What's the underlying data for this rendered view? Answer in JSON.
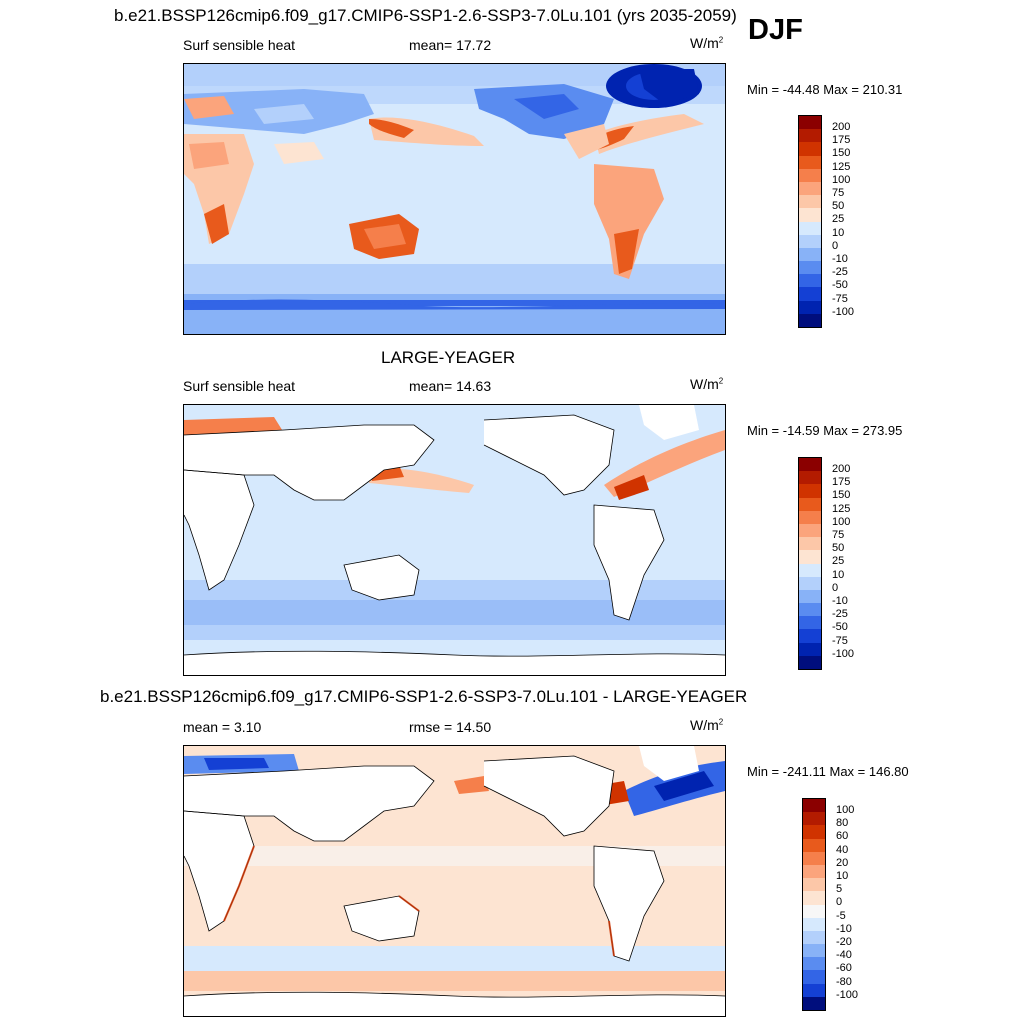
{
  "header": {
    "title": "b.e21.BSSP126cmip6.f09_g17.CMIP6-SSP1-2.6-SSP3-7.0Lu.101 (yrs 2035-2059)",
    "season": "DJF"
  },
  "panels": [
    {
      "name": "model",
      "section_title": "",
      "left": "Surf sensible heat",
      "middle": "mean=  17.72",
      "units": "W/m",
      "units_exp": "2",
      "minmax": "Min = -44.48 Max = 210.31",
      "levels": [
        "200",
        "175",
        "150",
        "125",
        "100",
        "75",
        "50",
        "25",
        "10",
        "0",
        "-10",
        "-25",
        "-50",
        "-75",
        "-100"
      ],
      "colors": [
        "#8b0000",
        "#b31b00",
        "#d03300",
        "#e85a1c",
        "#f57f4b",
        "#fba47c",
        "#fcc7a8",
        "#fde4d2",
        "#d6e9fd",
        "#b3d0fb",
        "#88b2f7",
        "#5a8cf0",
        "#3365e6",
        "#1440d4",
        "#0023b0",
        "#000e7d"
      ]
    },
    {
      "name": "obs",
      "section_title": "LARGE-YEAGER",
      "left": "Surf sensible heat",
      "middle": "mean=  14.63",
      "units": "W/m",
      "units_exp": "2",
      "minmax": "Min = -14.59 Max = 273.95",
      "levels": [
        "200",
        "175",
        "150",
        "125",
        "100",
        "75",
        "50",
        "25",
        "10",
        "0",
        "-10",
        "-25",
        "-50",
        "-75",
        "-100"
      ],
      "colors": [
        "#8b0000",
        "#b31b00",
        "#d03300",
        "#e85a1c",
        "#f57f4b",
        "#fba47c",
        "#fcc7a8",
        "#fde4d2",
        "#d6e9fd",
        "#b3d0fb",
        "#88b2f7",
        "#5a8cf0",
        "#3365e6",
        "#1440d4",
        "#0023b0",
        "#000e7d"
      ]
    },
    {
      "name": "diff",
      "section_title": "b.e21.BSSP126cmip6.f09_g17.CMIP6-SSP1-2.6-SSP3-7.0Lu.101 - LARGE-YEAGER",
      "left": "mean =   3.10",
      "middle": "rmse =  14.50",
      "units": "W/m",
      "units_exp": "2",
      "minmax": "Min = -241.11 Max = 146.80",
      "levels": [
        "100",
        "80",
        "60",
        "40",
        "20",
        "10",
        "5",
        "0",
        "-5",
        "-10",
        "-20",
        "-40",
        "-60",
        "-80",
        "-100"
      ],
      "colors": [
        "#8b0000",
        "#b31b00",
        "#d03300",
        "#e85a1c",
        "#f57f4b",
        "#fba47c",
        "#fcc7a8",
        "#fde4d2",
        "#f7f7f7",
        "#d6e9fd",
        "#b3d0fb",
        "#88b2f7",
        "#5a8cf0",
        "#3365e6",
        "#1440d4",
        "#000e7d"
      ]
    }
  ]
}
